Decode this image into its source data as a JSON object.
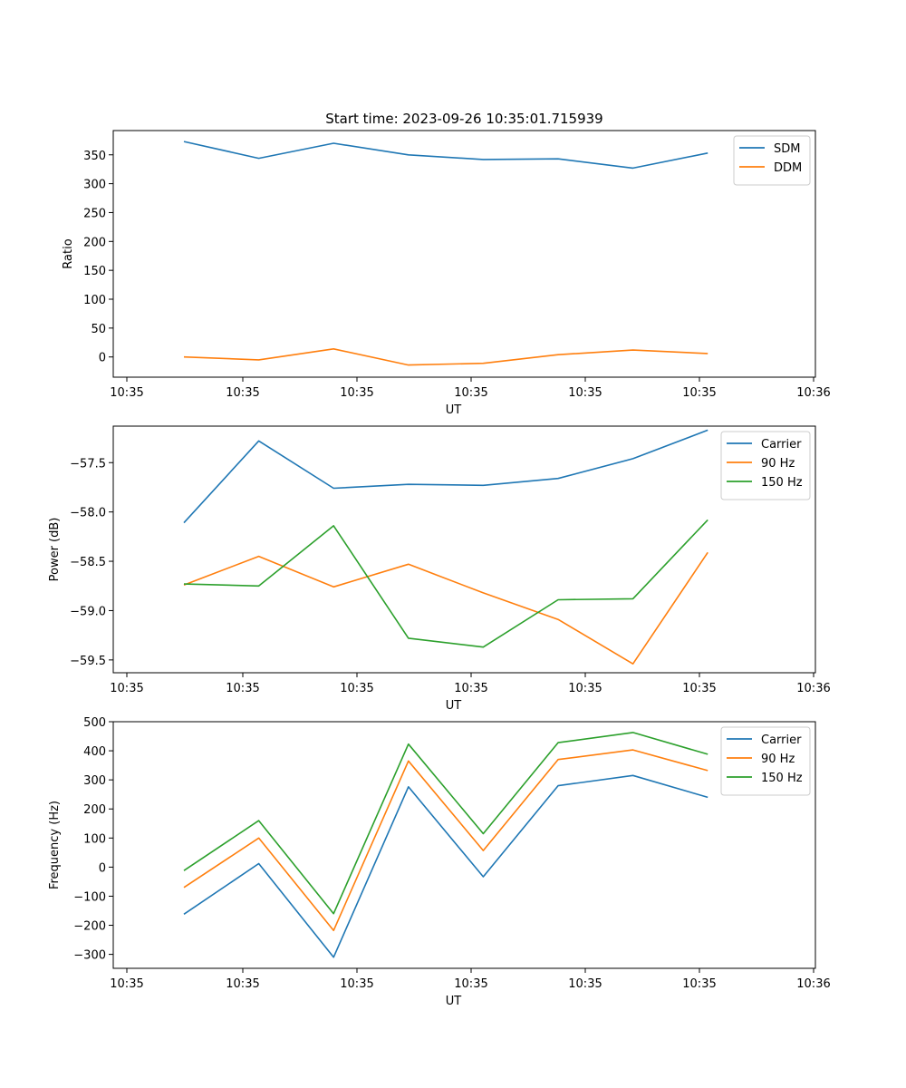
{
  "chart_data": [
    {
      "type": "line",
      "title": "Start time: 2023-09-26 10:35:01.715939",
      "xlabel": "UT",
      "ylabel": "Ratio",
      "xticks": [
        "10:35",
        "10:35",
        "10:35",
        "10:35",
        "10:35",
        "10:35",
        "10:35",
        "10:36"
      ],
      "ylim": [
        -35,
        392
      ],
      "yticks": [
        0,
        50,
        100,
        150,
        200,
        250,
        300,
        350
      ],
      "ytick_labels": [
        "0",
        "50",
        "100",
        "150",
        "200",
        "250",
        "300",
        "350"
      ],
      "legend": "top-right",
      "series": [
        {
          "name": "SDM",
          "color": "#1f77b4",
          "values": [
            373,
            344,
            370,
            350,
            342,
            343,
            327,
            353
          ]
        },
        {
          "name": "DDM",
          "color": "#ff7f0e",
          "values": [
            0,
            -5,
            14,
            -14,
            -11,
            4,
            12,
            6
          ]
        }
      ]
    },
    {
      "type": "line",
      "title": "",
      "xlabel": "UT",
      "ylabel": "Power (dB)",
      "xticks": [
        "10:35",
        "10:35",
        "10:35",
        "10:35",
        "10:35",
        "10:35",
        "10:35",
        "10:36"
      ],
      "ylim": [
        -59.63,
        -57.13
      ],
      "yticks": [
        -57.5,
        -58.0,
        -58.5,
        -59.0,
        -59.5
      ],
      "ytick_labels": [
        "−57.5",
        "−58.0",
        "−58.5",
        "−59.0",
        "−59.5"
      ],
      "legend": "top-right",
      "series": [
        {
          "name": "Carrier",
          "color": "#1f77b4",
          "values": [
            -58.11,
            -57.28,
            -57.76,
            -57.72,
            -57.73,
            -57.66,
            -57.46,
            -57.17
          ]
        },
        {
          "name": "90 Hz",
          "color": "#ff7f0e",
          "values": [
            -58.74,
            -58.45,
            -58.76,
            -58.53,
            -58.82,
            -59.09,
            -59.54,
            -58.41
          ]
        },
        {
          "name": "150 Hz",
          "color": "#2ca02c",
          "values": [
            -58.73,
            -58.75,
            -58.14,
            -59.28,
            -59.37,
            -58.89,
            -58.88,
            -58.08
          ]
        }
      ]
    },
    {
      "type": "line",
      "title": "",
      "xlabel": "UT",
      "ylabel": "Frequency (Hz)",
      "xticks": [
        "10:35",
        "10:35",
        "10:35",
        "10:35",
        "10:35",
        "10:35",
        "10:35",
        "10:36"
      ],
      "ylim": [
        -348,
        500
      ],
      "yticks": [
        -300,
        -200,
        -100,
        0,
        100,
        200,
        300,
        400,
        500
      ],
      "ytick_labels": [
        "−300",
        "−200",
        "−100",
        "0",
        "100",
        "200",
        "300",
        "400",
        "500"
      ],
      "legend": "top-right",
      "series": [
        {
          "name": "Carrier",
          "color": "#1f77b4",
          "values": [
            -162,
            12,
            -310,
            276,
            -33,
            280,
            315,
            240
          ]
        },
        {
          "name": "90 Hz",
          "color": "#ff7f0e",
          "values": [
            -70,
            100,
            -218,
            365,
            57,
            370,
            403,
            332
          ]
        },
        {
          "name": "150 Hz",
          "color": "#2ca02c",
          "values": [
            -12,
            160,
            -160,
            423,
            115,
            428,
            463,
            388
          ]
        }
      ]
    }
  ]
}
